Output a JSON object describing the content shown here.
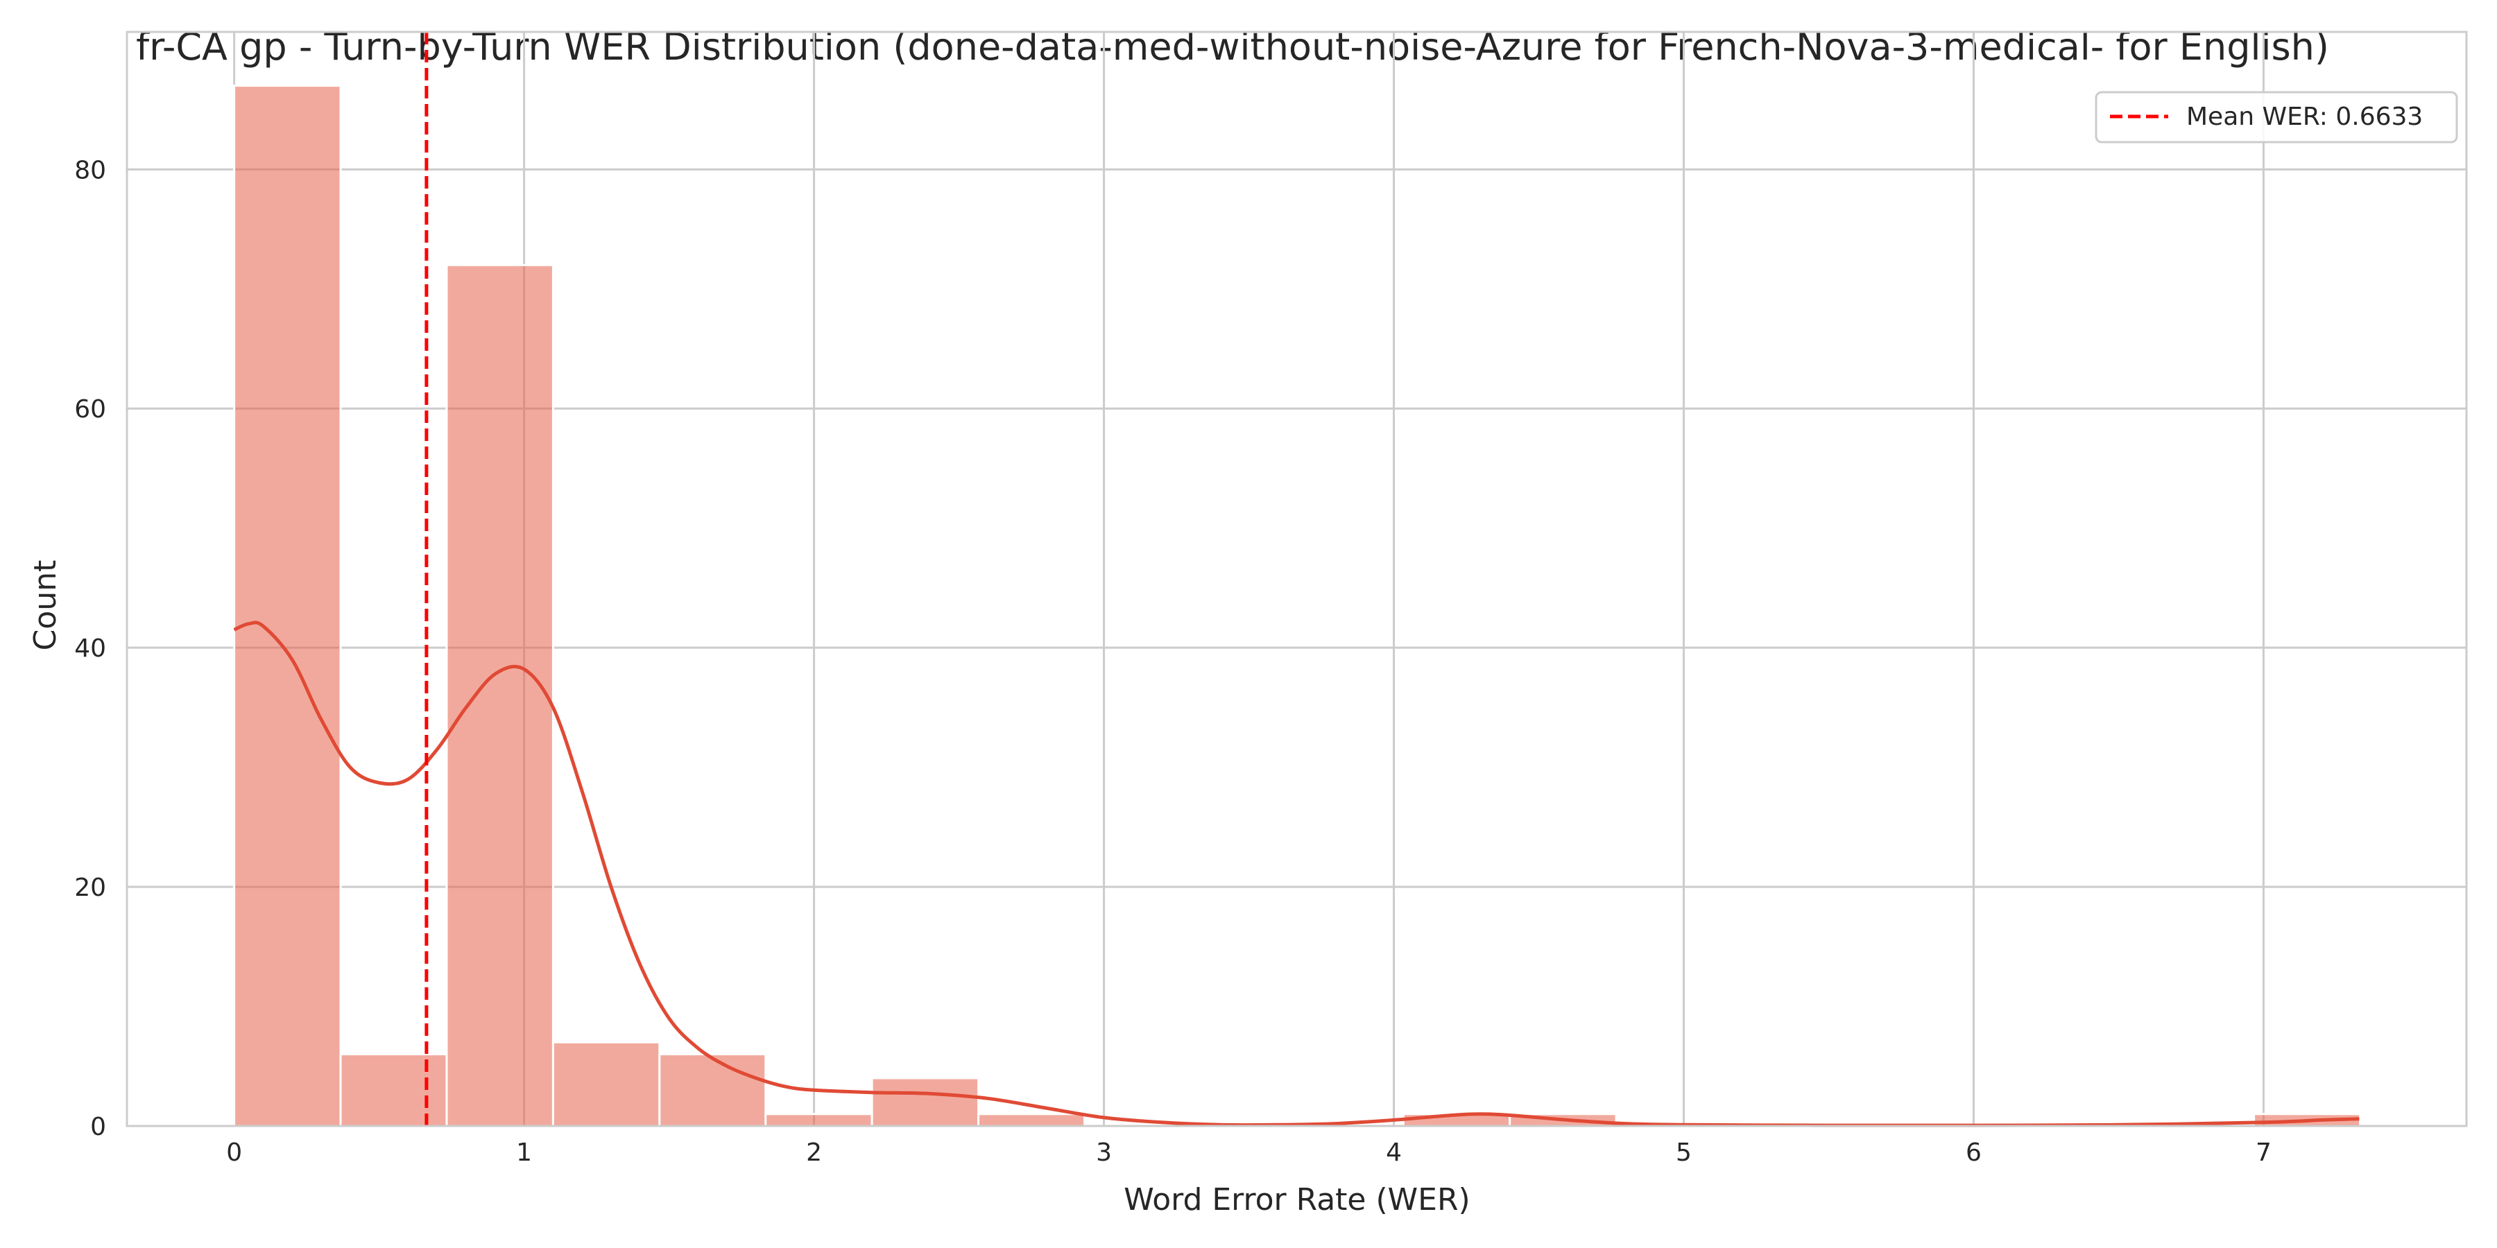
{
  "chart_data": {
    "type": "bar",
    "title": "fr-CA gp - Turn-by-Turn WER Distribution (done-data-med-without-noise-Azure for French-Nova-3-medical- for English)",
    "xlabel": "Word Error Rate (WER)",
    "ylabel": "Count",
    "xlim": [
      -0.37,
      7.7
    ],
    "ylim": [
      0,
      91.5
    ],
    "xticks": [
      0,
      1,
      2,
      3,
      4,
      5,
      6,
      7
    ],
    "yticks": [
      0,
      20,
      40,
      60,
      80
    ],
    "grid": true,
    "bins": [
      {
        "start": 0.0,
        "end": 0.367,
        "count": 87
      },
      {
        "start": 0.367,
        "end": 0.733,
        "count": 6
      },
      {
        "start": 0.733,
        "end": 1.1,
        "count": 72
      },
      {
        "start": 1.1,
        "end": 1.467,
        "count": 7
      },
      {
        "start": 1.467,
        "end": 1.833,
        "count": 6
      },
      {
        "start": 1.833,
        "end": 2.2,
        "count": 1
      },
      {
        "start": 2.2,
        "end": 2.567,
        "count": 4
      },
      {
        "start": 2.567,
        "end": 2.933,
        "count": 1
      },
      {
        "start": 2.933,
        "end": 3.3,
        "count": 0
      },
      {
        "start": 3.3,
        "end": 3.667,
        "count": 0
      },
      {
        "start": 3.667,
        "end": 4.033,
        "count": 0
      },
      {
        "start": 4.033,
        "end": 4.4,
        "count": 1
      },
      {
        "start": 4.4,
        "end": 4.767,
        "count": 1
      },
      {
        "start": 4.767,
        "end": 5.133,
        "count": 0
      },
      {
        "start": 5.133,
        "end": 5.5,
        "count": 0
      },
      {
        "start": 5.5,
        "end": 5.867,
        "count": 0
      },
      {
        "start": 5.867,
        "end": 6.233,
        "count": 0
      },
      {
        "start": 6.233,
        "end": 6.6,
        "count": 0
      },
      {
        "start": 6.6,
        "end": 6.967,
        "count": 0
      },
      {
        "start": 6.967,
        "end": 7.333,
        "count": 1
      }
    ],
    "kde": {
      "x": [
        0.0,
        0.05,
        0.1,
        0.2,
        0.3,
        0.4,
        0.5,
        0.6,
        0.7,
        0.8,
        0.9,
        1.0,
        1.1,
        1.2,
        1.3,
        1.4,
        1.5,
        1.6,
        1.7,
        1.8,
        1.9,
        2.0,
        2.2,
        2.4,
        2.6,
        2.8,
        3.0,
        3.2,
        3.4,
        3.6,
        3.8,
        4.0,
        4.2,
        4.3,
        4.4,
        4.6,
        4.8,
        5.0,
        5.5,
        6.0,
        6.5,
        7.0,
        7.2,
        7.33
      ],
      "y": [
        41.5,
        42.0,
        41.8,
        39.0,
        34.0,
        30.0,
        28.7,
        29.0,
        31.5,
        35.0,
        37.8,
        38.2,
        35.0,
        28.0,
        20.0,
        13.5,
        9.0,
        6.5,
        5.0,
        4.0,
        3.3,
        3.0,
        2.8,
        2.7,
        2.3,
        1.5,
        0.7,
        0.3,
        0.1,
        0.1,
        0.2,
        0.5,
        0.9,
        1.0,
        0.9,
        0.5,
        0.2,
        0.1,
        0.05,
        0.05,
        0.1,
        0.3,
        0.5,
        0.6
      ]
    },
    "mean_wer": 0.6633,
    "legend": {
      "label": "Mean WER: 0.6633",
      "position": "top-right"
    },
    "colors": {
      "bar": "#e8624d",
      "kde": "#e04a35",
      "mean": "#ff0000",
      "grid": "#cccccc"
    }
  }
}
